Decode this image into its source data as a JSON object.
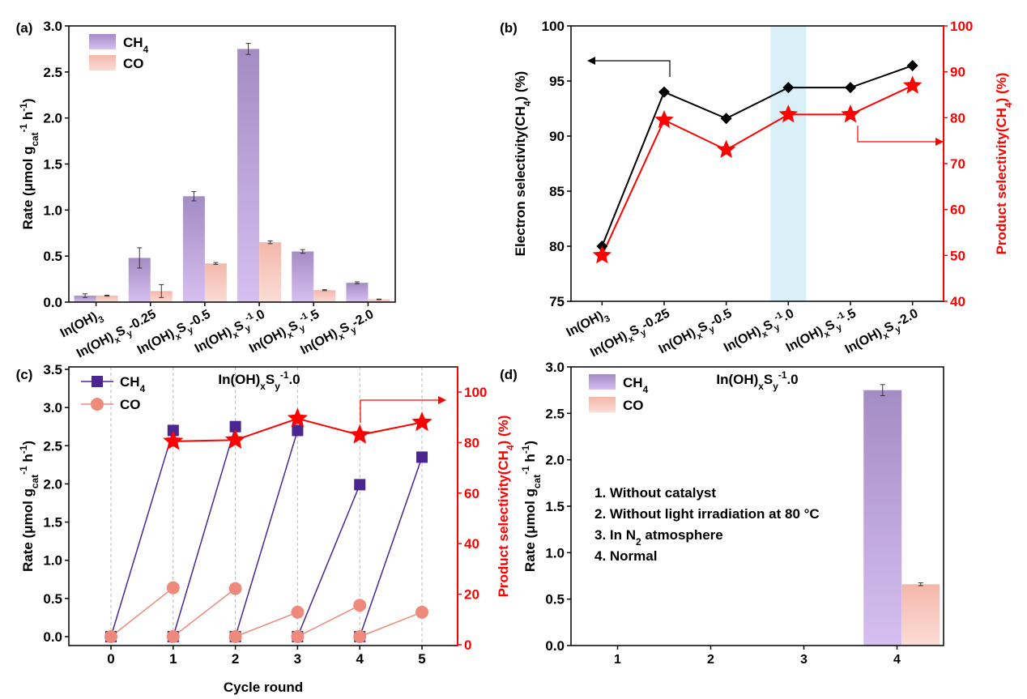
{
  "colors": {
    "ch4_top": "#a48cc4",
    "ch4_bottom": "#d6bff0",
    "co_top": "#f4b7aa",
    "co_bottom": "#fadcd6",
    "ch4_line": "#4b2590",
    "co_line": "#ee8a7c",
    "red": "#ff0000",
    "shade": "#d9f0f8"
  },
  "chart_data": [
    {
      "panel": "(a)",
      "type": "bar",
      "categories": [
        "In(OH)3",
        "In(OH)xSy-0.25",
        "In(OH)xSy-0.5",
        "In(OH)xSy-1.0",
        "In(OH)xSy-1.5",
        "In(OH)xSy-2.0"
      ],
      "series": [
        {
          "name": "CH4",
          "values": [
            0.07,
            0.48,
            1.15,
            2.75,
            0.55,
            0.21
          ],
          "errors": [
            0.02,
            0.11,
            0.05,
            0.06,
            0.02,
            0.01
          ]
        },
        {
          "name": "CO",
          "values": [
            0.07,
            0.12,
            0.42,
            0.65,
            0.13,
            0.03
          ],
          "errors": [
            0.005,
            0.07,
            0.01,
            0.015,
            0.005,
            0.003
          ]
        }
      ],
      "ylabel": "Rate (μmol gcat-1 h-1)",
      "ylim": [
        0,
        3.0
      ],
      "yticks": [
        "0.0",
        "0.5",
        "1.0",
        "1.5",
        "2.0",
        "2.5",
        "3.0"
      ],
      "legend": "top-left"
    },
    {
      "panel": "(b)",
      "type": "line",
      "categories": [
        "In(OH)3",
        "In(OH)xSy-0.25",
        "In(OH)xSy-0.5",
        "In(OH)xSy-1.0",
        "In(OH)xSy-1.5",
        "In(OH)xSy-2.0"
      ],
      "series": [
        {
          "name": "Electron selectivity(CH4)",
          "axis": "left",
          "values": [
            80,
            94,
            91.6,
            94.4,
            94.4,
            96.4
          ]
        },
        {
          "name": "Product selectivity(CH4)",
          "axis": "right",
          "values": [
            50,
            79.5,
            73,
            80.7,
            80.7,
            87
          ]
        }
      ],
      "ylabel": "Electron selectivity(CH4) (%)",
      "y2label": "Product selectivity(CH4) (%)",
      "ylim": [
        75,
        100
      ],
      "y2lim": [
        40,
        100
      ],
      "yticks": [
        "75",
        "80",
        "85",
        "90",
        "95",
        "100"
      ],
      "y2ticks": [
        "40",
        "50",
        "60",
        "70",
        "80",
        "90",
        "100"
      ],
      "highlight": "In(OH)xSy-1.0"
    },
    {
      "panel": "(c)",
      "type": "line",
      "title": "In(OH)xSy-1.0",
      "x": [
        0,
        1,
        2,
        3,
        4,
        5
      ],
      "cycles": [
        {
          "name": "CH4",
          "segments": [
            [
              0,
              2.7
            ],
            [
              0,
              2.75
            ],
            [
              0,
              2.7
            ],
            [
              0,
              1.99
            ],
            [
              0,
              2.35
            ]
          ]
        },
        {
          "name": "CO",
          "segments": [
            [
              0,
              0.64
            ],
            [
              0,
              0.63
            ],
            [
              0,
              0.32
            ],
            [
              0,
              0.41
            ],
            [
              0,
              0.32
            ]
          ]
        }
      ],
      "selectivity": {
        "name": "Product selectivity(CH4)",
        "x": [
          1,
          2,
          3,
          4,
          5
        ],
        "values": [
          80.5,
          81,
          89.5,
          83,
          88
        ]
      },
      "xlabel": "Cycle round",
      "ylabel": "Rate (μmol gcat-1 h-1)",
      "y2label": "Product selectivity(CH4) (%)",
      "ylim": [
        0,
        3.5
      ],
      "y2lim": [
        0,
        110
      ],
      "xticks": [
        "0",
        "1",
        "2",
        "3",
        "4",
        "5"
      ],
      "yticks": [
        "0.0",
        "0.5",
        "1.0",
        "1.5",
        "2.0",
        "2.5",
        "3.0",
        "3.5"
      ],
      "y2ticks": [
        "0",
        "20",
        "40",
        "60",
        "80",
        "100"
      ],
      "legend": "top-left"
    },
    {
      "panel": "(d)",
      "type": "bar",
      "title": "In(OH)xSy-1.0",
      "categories": [
        "1",
        "2",
        "3",
        "4"
      ],
      "series": [
        {
          "name": "CH4",
          "values": [
            0,
            0,
            0,
            2.75
          ],
          "errors": [
            0,
            0,
            0,
            0.06
          ]
        },
        {
          "name": "CO",
          "values": [
            0,
            0,
            0,
            0.66
          ],
          "errors": [
            0,
            0,
            0,
            0.015
          ]
        }
      ],
      "ylabel": "Rate (μmol gcat-1 h-1)",
      "ylim": [
        0,
        3.0
      ],
      "yticks": [
        "0.0",
        "0.5",
        "1.0",
        "1.5",
        "2.0",
        "2.5",
        "3.0"
      ],
      "notes": [
        "1. Without catalyst",
        "2. Without light irradiation at 80 °C",
        "3. In N2 atmosphere",
        "4. Normal"
      ],
      "legend": "top-left"
    }
  ]
}
